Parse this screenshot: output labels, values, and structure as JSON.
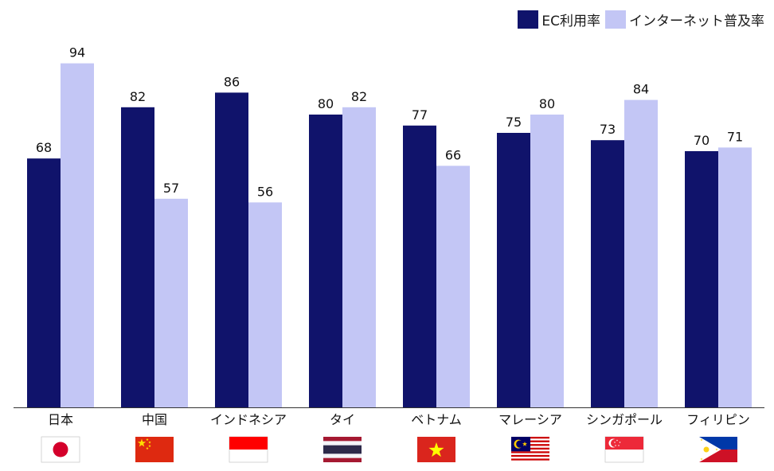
{
  "chart_data": {
    "type": "bar",
    "title": "",
    "xlabel": "",
    "ylabel": "",
    "ylim": [
      0,
      100
    ],
    "grid": false,
    "legend_position": "top-right",
    "categories": [
      "日本",
      "中国",
      "インドネシア",
      "タイ",
      "ベトナム",
      "マレーシア",
      "シンガポール",
      "フィリピン"
    ],
    "series": [
      {
        "name": "EC利用率",
        "color": "#10136b",
        "values": [
          68,
          82,
          86,
          80,
          77,
          75,
          73,
          70
        ]
      },
      {
        "name": "インターネット普及率",
        "color": "#c3c6f5",
        "values": [
          94,
          57,
          56,
          82,
          66,
          80,
          84,
          71
        ]
      }
    ],
    "flags": [
      "japan-flag",
      "china-flag",
      "indonesia-flag",
      "thailand-flag",
      "vietnam-flag",
      "malaysia-flag",
      "singapore-flag",
      "philippines-flag"
    ]
  }
}
